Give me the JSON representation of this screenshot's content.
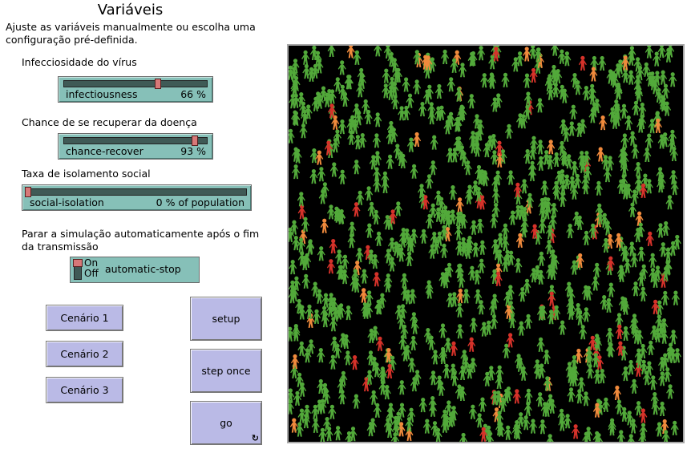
{
  "title": "Variáveis",
  "intro": "Ajuste as variáveis manualmente ou escolha uma configuração pré-definida.",
  "sliders": [
    {
      "caption": "Infecciosidade do vírus",
      "name": "infectiousness",
      "value": 66,
      "display": "66 %",
      "min": 0,
      "max": 100
    },
    {
      "caption": "Chance de se recuperar da doença",
      "name": "chance-recover",
      "value": 93,
      "display": "93 %",
      "min": 0,
      "max": 100
    },
    {
      "caption": "Taxa de isolamento social",
      "name": "social-isolation",
      "value": 0,
      "display": "0 % of population",
      "min": 0,
      "max": 100
    }
  ],
  "switch": {
    "caption": "Parar a simulação automaticamente após o fim da transmissão",
    "on_label": "On",
    "off_label": "Off",
    "name": "automatic-stop",
    "state": "on"
  },
  "scenarios": [
    "Cenário 1",
    "Cenário 2",
    "Cenário 3"
  ],
  "buttons": {
    "setup": "setup",
    "step": "step once",
    "go": "go",
    "go_icon": "forever-arrows-icon"
  },
  "world": {
    "background": "#000000",
    "colors": {
      "healthy": "#52a93a",
      "infected": "#f08a3c",
      "sick": "#d6322a"
    }
  }
}
